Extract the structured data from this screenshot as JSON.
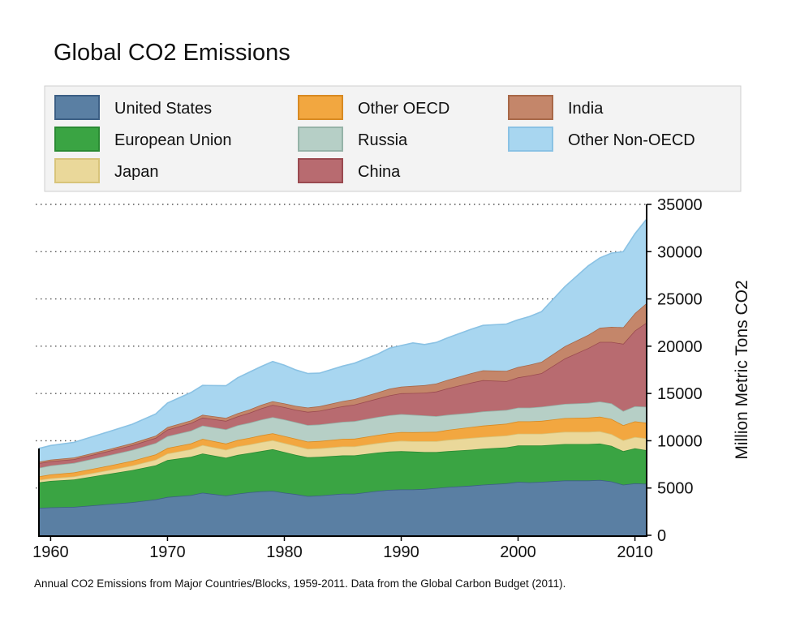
{
  "chart_data": {
    "type": "area",
    "stacked": true,
    "title": "Global CO2 Emissions",
    "ylabel": "Million Metric Tons CO2",
    "xlabel": "",
    "caption": "Annual CO2 Emissions from Major Countries/Blocks, 1959-2011. Data from the Global Carbon Budget (2011).",
    "xlim": [
      1959,
      2011
    ],
    "ylim": [
      0,
      35000
    ],
    "x_ticks": [
      1960,
      1970,
      1980,
      1990,
      2000,
      2010
    ],
    "y_ticks": [
      0,
      5000,
      10000,
      15000,
      20000,
      25000,
      30000,
      35000
    ],
    "y_axis_side": "right",
    "grid": "horizontal dotted",
    "legend_position": "top",
    "x": [
      1959,
      1960,
      1962,
      1965,
      1967,
      1969,
      1970,
      1972,
      1973,
      1975,
      1976,
      1977,
      1978,
      1979,
      1980,
      1981,
      1982,
      1983,
      1985,
      1986,
      1988,
      1989,
      1990,
      1991,
      1992,
      1993,
      1994,
      1996,
      1997,
      1999,
      2000,
      2001,
      2002,
      2004,
      2006,
      2007,
      2008,
      2009,
      2010,
      2011
    ],
    "series": [
      {
        "name": "United States",
        "color": "#5a7fa3",
        "edge": "#3c5f85",
        "values": [
          2900,
          2950,
          3000,
          3300,
          3500,
          3800,
          4050,
          4250,
          4500,
          4200,
          4400,
          4550,
          4650,
          4700,
          4500,
          4350,
          4150,
          4200,
          4400,
          4400,
          4700,
          4800,
          4850,
          4850,
          4900,
          5000,
          5100,
          5250,
          5350,
          5500,
          5650,
          5600,
          5650,
          5800,
          5800,
          5850,
          5700,
          5350,
          5500,
          5450
        ]
      },
      {
        "name": "European Union",
        "color": "#3aa443",
        "edge": "#2a8a33",
        "values": [
          2700,
          2800,
          2900,
          3200,
          3400,
          3600,
          3900,
          4050,
          4150,
          4000,
          4100,
          4150,
          4250,
          4400,
          4300,
          4150,
          4100,
          4100,
          4050,
          4050,
          4050,
          4050,
          4050,
          4000,
          3900,
          3800,
          3800,
          3800,
          3800,
          3800,
          3850,
          3900,
          3850,
          3850,
          3850,
          3850,
          3750,
          3550,
          3700,
          3550
        ]
      },
      {
        "name": "Japan",
        "color": "#ead89a",
        "edge": "#d8c47a",
        "values": [
          250,
          280,
          320,
          400,
          480,
          600,
          700,
          800,
          900,
          850,
          900,
          900,
          950,
          950,
          950,
          950,
          900,
          900,
          950,
          950,
          1000,
          1050,
          1100,
          1100,
          1150,
          1150,
          1200,
          1250,
          1250,
          1250,
          1250,
          1250,
          1250,
          1300,
          1300,
          1300,
          1250,
          1150,
          1200,
          1250
        ]
      },
      {
        "name": "Other OECD",
        "color": "#f2a740",
        "edge": "#d88a22",
        "values": [
          380,
          400,
          430,
          470,
          500,
          550,
          580,
          620,
          650,
          650,
          680,
          700,
          720,
          740,
          750,
          760,
          760,
          770,
          800,
          820,
          870,
          900,
          920,
          950,
          980,
          1000,
          1050,
          1150,
          1200,
          1250,
          1300,
          1300,
          1350,
          1450,
          1500,
          1550,
          1600,
          1600,
          1650,
          1650
        ]
      },
      {
        "name": "Russia",
        "color": "#b6cfc6",
        "edge": "#95b3a8",
        "values": [
          900,
          950,
          1000,
          1100,
          1150,
          1200,
          1250,
          1350,
          1400,
          1500,
          1550,
          1600,
          1650,
          1700,
          1750,
          1750,
          1750,
          1750,
          1800,
          1850,
          1900,
          1900,
          1900,
          1850,
          1750,
          1650,
          1600,
          1500,
          1500,
          1450,
          1450,
          1450,
          1500,
          1500,
          1550,
          1600,
          1650,
          1500,
          1600,
          1700
        ]
      },
      {
        "name": "China",
        "color": "#b86b70",
        "edge": "#9a4a50",
        "values": [
          500,
          450,
          400,
          450,
          500,
          550,
          700,
          800,
          850,
          900,
          950,
          1050,
          1200,
          1300,
          1300,
          1300,
          1400,
          1450,
          1650,
          1750,
          1950,
          2100,
          2200,
          2300,
          2400,
          2600,
          2800,
          3200,
          3300,
          3050,
          3200,
          3400,
          3550,
          4800,
          5800,
          6300,
          6500,
          7100,
          8000,
          8900
        ]
      },
      {
        "name": "India",
        "color": "#c4866a",
        "edge": "#a86848",
        "values": [
          160,
          170,
          180,
          200,
          220,
          240,
          260,
          280,
          300,
          320,
          330,
          350,
          370,
          390,
          400,
          420,
          450,
          480,
          550,
          580,
          650,
          700,
          700,
          750,
          800,
          850,
          900,
          1000,
          1050,
          1100,
          1100,
          1150,
          1200,
          1300,
          1400,
          1500,
          1600,
          1750,
          1850,
          2050
        ]
      },
      {
        "name": "Other Non-OECD",
        "color": "#a8d6f0",
        "edge": "#8ac2e4",
        "values": [
          1400,
          1500,
          1600,
          1850,
          2000,
          2300,
          2550,
          2950,
          3100,
          3400,
          3750,
          3950,
          4050,
          4200,
          4050,
          3800,
          3600,
          3500,
          3700,
          3800,
          4050,
          4300,
          4350,
          4550,
          4300,
          4350,
          4450,
          4650,
          4750,
          4950,
          5000,
          5100,
          5300,
          6300,
          7300,
          7400,
          7800,
          8000,
          8400,
          8900
        ]
      }
    ]
  }
}
